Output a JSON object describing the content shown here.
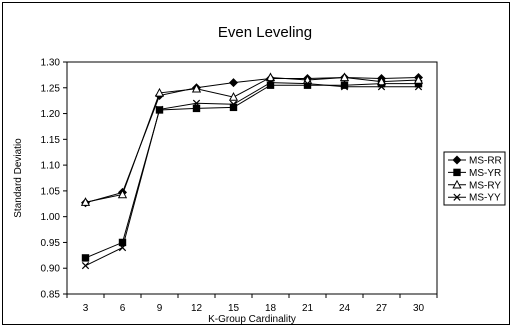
{
  "chart_data": {
    "type": "line",
    "title": "Even Leveling",
    "xlabel": "K-Group Cardinality",
    "ylabel": "Standard Deviatio",
    "x": [
      3,
      6,
      9,
      12,
      15,
      18,
      21,
      24,
      27,
      30
    ],
    "ylim": [
      0.85,
      1.3
    ],
    "yticks": [
      "0.85",
      "0.90",
      "0.95",
      "1.00",
      "1.05",
      "1.10",
      "1.15",
      "1.20",
      "1.25",
      "1.30"
    ],
    "grid": false,
    "legend": "right",
    "series": [
      {
        "name": "MS-RR",
        "marker": "diamond",
        "values": [
          1.027,
          1.047,
          1.235,
          1.25,
          1.26,
          1.268,
          1.268,
          1.27,
          1.268,
          1.27
        ]
      },
      {
        "name": "MS-YR",
        "marker": "square",
        "values": [
          0.92,
          0.95,
          1.207,
          1.21,
          1.212,
          1.255,
          1.255,
          1.255,
          1.258,
          1.258
        ]
      },
      {
        "name": "MS-RY",
        "marker": "triangle",
        "values": [
          1.028,
          1.043,
          1.24,
          1.248,
          1.232,
          1.27,
          1.265,
          1.27,
          1.262,
          1.265
        ]
      },
      {
        "name": "MS-YY",
        "marker": "x",
        "values": [
          0.905,
          0.94,
          1.208,
          1.22,
          1.218,
          1.26,
          1.258,
          1.252,
          1.252,
          1.252
        ]
      }
    ]
  }
}
